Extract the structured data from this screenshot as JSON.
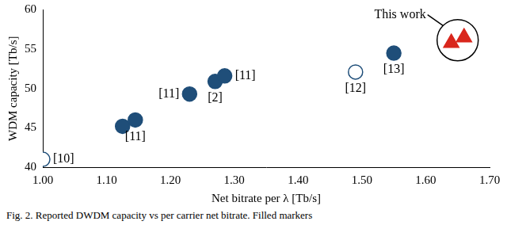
{
  "chart_data": {
    "type": "scatter",
    "x_label": "Net bitrate per λ [Tb/s]",
    "y_label": "WDM capacity [Tb/s]",
    "caption": "Fig. 2. Reported DWDM capacity vs per carrier net bitrate. Filled markers",
    "xlim": [
      1.0,
      1.7
    ],
    "xticks": [
      {
        "value": 1.0,
        "label": "1.00"
      },
      {
        "value": 1.1,
        "label": "1.10"
      },
      {
        "value": 1.2,
        "label": "1.20"
      },
      {
        "value": 1.3,
        "label": "1.30"
      },
      {
        "value": 1.4,
        "label": "1.40"
      },
      {
        "value": 1.5,
        "label": "1.50"
      },
      {
        "value": 1.6,
        "label": "1.60"
      },
      {
        "value": 1.7,
        "label": "1.70"
      }
    ],
    "ylim": [
      40,
      60
    ],
    "yticks": [
      40,
      45,
      50,
      55,
      60
    ],
    "grid": false,
    "series": [
      {
        "color": "#1f4e79",
        "marker": "circle",
        "x": [
          1.125,
          1.145,
          1.23,
          1.27,
          1.285,
          1.55
        ],
        "values": [
          45.2,
          46.0,
          49.3,
          50.9,
          51.6,
          54.5
        ],
        "labels": [
          null,
          "[11]",
          "[11]",
          "[2]",
          "[11]",
          "[13]"
        ]
      },
      {
        "color": "#1f4e79",
        "marker": "circle_open",
        "x": [
          1.0,
          1.49
        ],
        "values": [
          41.0,
          52.1
        ],
        "labels": [
          "[10]",
          "[12]"
        ]
      },
      {
        "name": "This work",
        "color": "#d9261c",
        "marker": "triangle",
        "x": [
          1.64,
          1.66
        ],
        "values": [
          55.8,
          56.5
        ]
      }
    ]
  }
}
